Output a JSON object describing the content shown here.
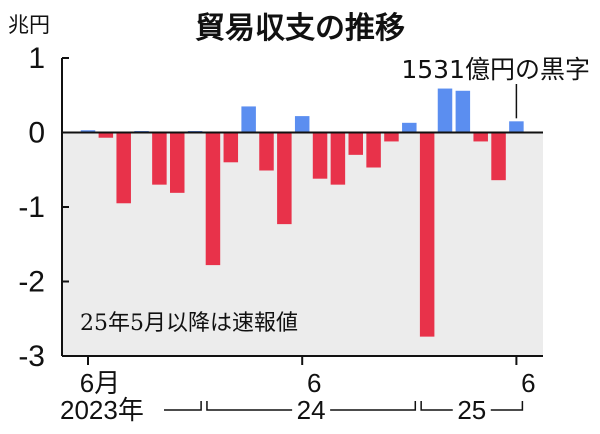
{
  "chart_data": {
    "type": "bar",
    "title": "貿易収支の推移",
    "unit_label": "兆円",
    "ylim": [
      -3,
      1
    ],
    "yticks": [
      {
        "value": 1,
        "label": "1"
      },
      {
        "value": 0,
        "label": "0"
      },
      {
        "value": -1,
        "label": "-1"
      },
      {
        "value": -2,
        "label": "-2"
      },
      {
        "value": -3,
        "label": "-3"
      }
    ],
    "x": [
      "2023-06",
      "2023-07",
      "2023-08",
      "2023-09",
      "2023-10",
      "2023-11",
      "2023-12",
      "2024-01",
      "2024-02",
      "2024-03",
      "2024-04",
      "2024-05",
      "2024-06",
      "2024-07",
      "2024-08",
      "2024-09",
      "2024-10",
      "2024-11",
      "2024-12",
      "2025-01",
      "2025-02",
      "2025-03",
      "2025-04",
      "2025-05",
      "2025-06"
    ],
    "values": [
      0.03,
      -0.07,
      -0.95,
      0.02,
      -0.7,
      -0.81,
      0.02,
      -1.78,
      -0.4,
      0.35,
      -0.51,
      -1.23,
      0.22,
      -0.62,
      -0.7,
      -0.3,
      -0.47,
      -0.12,
      0.13,
      -2.74,
      0.59,
      0.56,
      -0.12,
      -0.64,
      0.15
    ],
    "colors": {
      "positive": "#5b8ef0",
      "negative": "#e8324a",
      "negative_area": "#ececec"
    },
    "xticks": [
      {
        "index": 0,
        "label": "6月"
      },
      {
        "index": 12,
        "label": "6"
      },
      {
        "index": 24,
        "label": "6"
      }
    ],
    "year_labels": [
      {
        "label": "2023年",
        "start": 0,
        "end": 6
      },
      {
        "label": "24",
        "start": 7,
        "end": 18
      },
      {
        "label": "25",
        "start": 19,
        "end": 24
      }
    ],
    "annotation": {
      "text": "1531億円の黒字",
      "index": 24
    },
    "note": "25年5月以降は速報値"
  }
}
